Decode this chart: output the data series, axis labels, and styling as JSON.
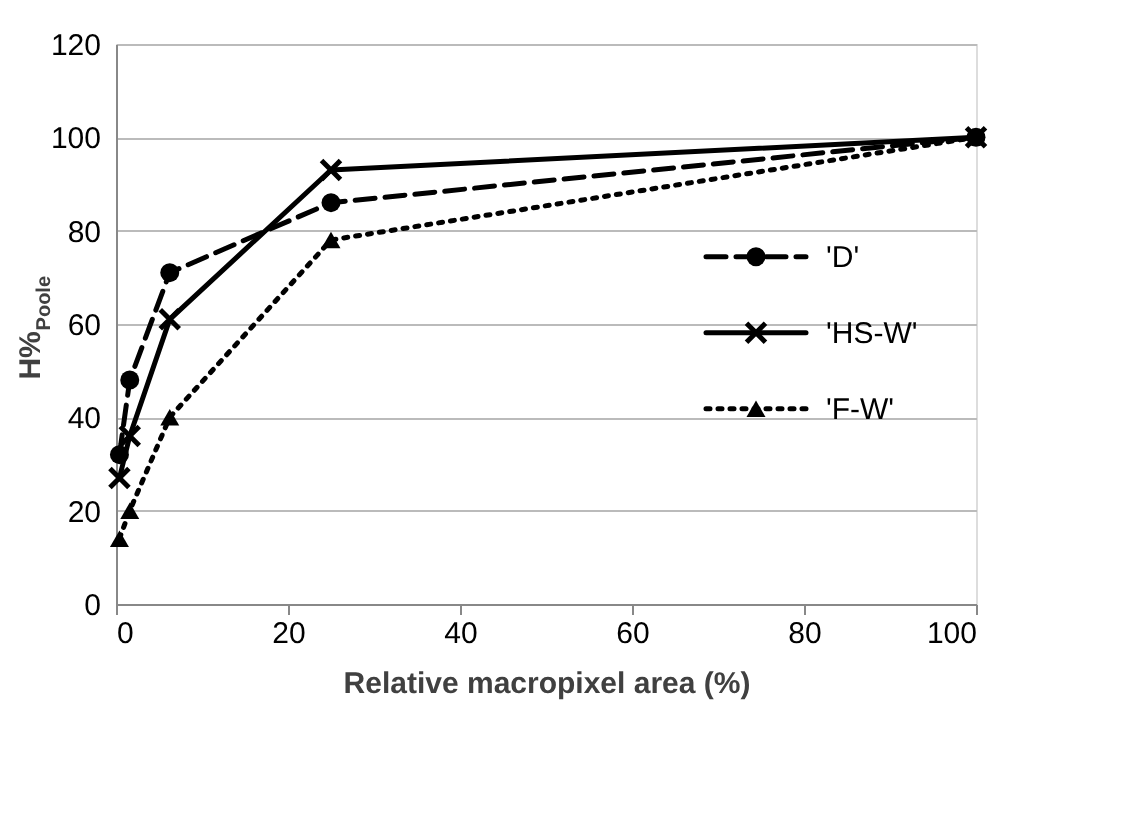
{
  "chart_data": {
    "type": "line",
    "xlabel": "Relative macropixel area (%)",
    "ylabel": "H%$_{Poole}$",
    "x": [
      0.4,
      1.6,
      6.25,
      25,
      100
    ],
    "series": [
      {
        "name": "'D'",
        "color": "#000000",
        "marker": "circle",
        "line_style": "dashed",
        "values": [
          32,
          48,
          71,
          86,
          100
        ]
      },
      {
        "name": "'HS-W'",
        "color": "#000000",
        "marker": "cross",
        "line_style": "solid",
        "values": [
          27,
          36,
          61,
          93,
          100
        ]
      },
      {
        "name": "'F-W'",
        "color": "#000000",
        "marker": "triangle",
        "line_style": "dotted",
        "values": [
          14,
          20,
          40,
          78,
          100
        ]
      }
    ],
    "xlim": [
      0,
      100
    ],
    "xticks": [
      0,
      20,
      40,
      60,
      80,
      100
    ],
    "ylim": [
      0,
      120
    ],
    "yticks": [
      0,
      20,
      40,
      60,
      80,
      100,
      120
    ],
    "grid": "y",
    "legend": "right"
  }
}
